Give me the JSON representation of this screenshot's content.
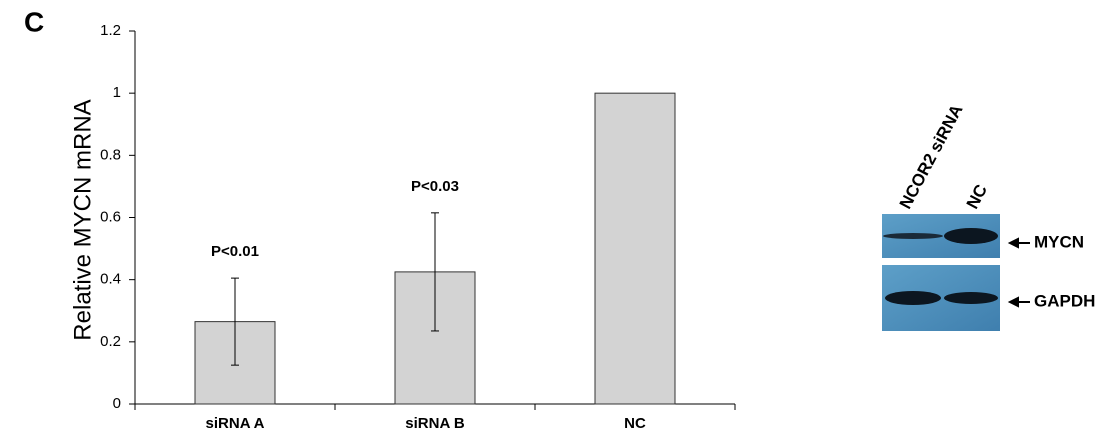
{
  "chart_data": {
    "type": "bar",
    "panel_label": "C",
    "ylabel": "Relative MYCN mRNA",
    "categories": [
      "siRNA A",
      "siRNA B",
      "NC"
    ],
    "values": [
      0.265,
      0.425,
      1.0
    ],
    "errors": [
      0.14,
      0.19,
      null
    ],
    "annotations": [
      "P<0.01",
      "P<0.03",
      null
    ],
    "color": "#d3d3d3",
    "ylim": [
      0,
      1.2
    ],
    "yticks": [
      0,
      0.2,
      0.4,
      0.6,
      0.8,
      1,
      1.2
    ],
    "grid": false
  },
  "blot": {
    "lanes": [
      "NCOR2 siRNA",
      "NC"
    ],
    "bands": [
      "MYCN",
      "GAPDH"
    ]
  }
}
